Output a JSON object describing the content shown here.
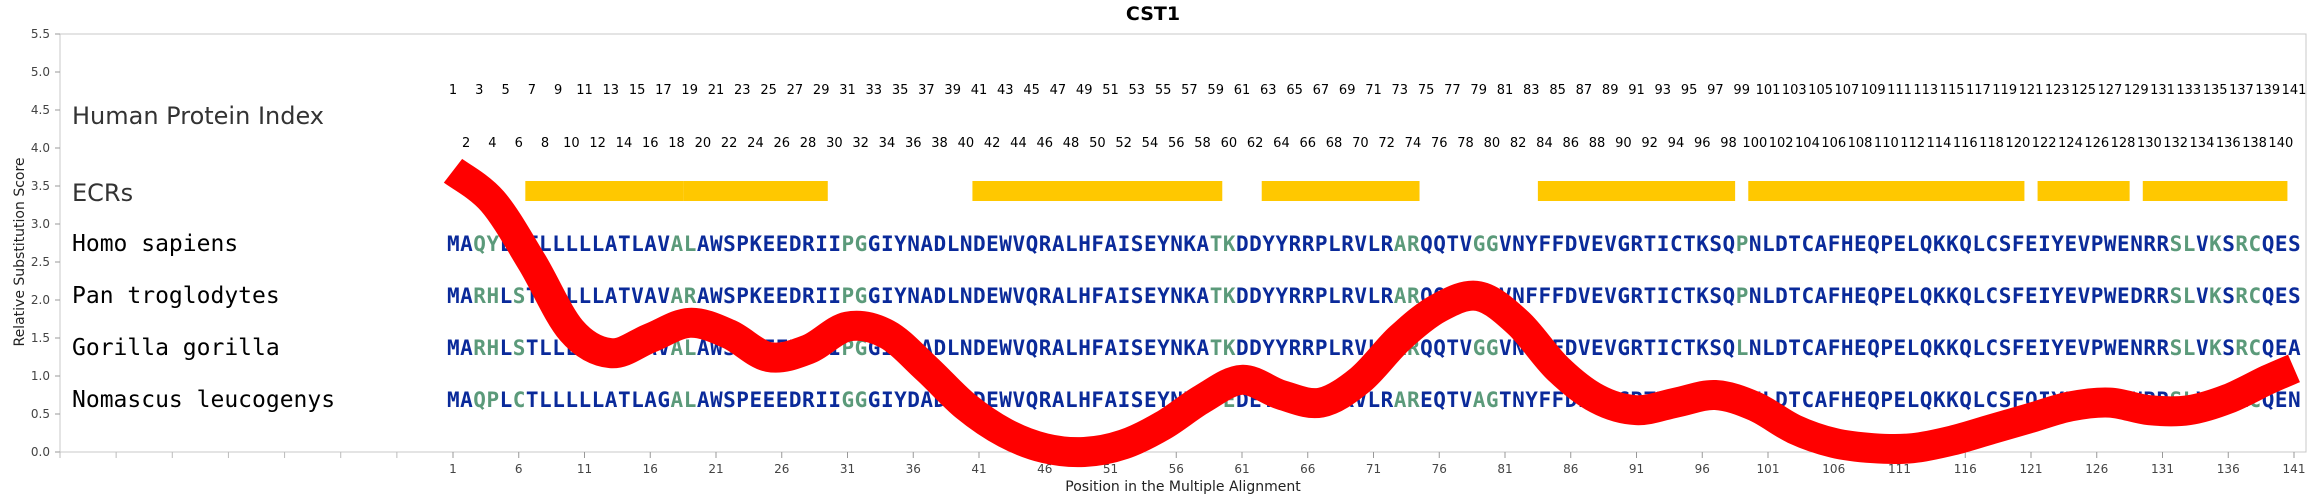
{
  "chart_data": {
    "type": "line",
    "title": "CST1",
    "xlabel": "Position in the Multiple Alignment",
    "ylabel": "Relative Substitution Score",
    "xlim": [
      1,
      141
    ],
    "ylim": [
      0,
      5.5
    ],
    "x_ticks": [
      "1",
      "6",
      "11",
      "16",
      "21",
      "26",
      "31",
      "36",
      "41",
      "46",
      "51",
      "56",
      "61",
      "66",
      "71",
      "76",
      "81",
      "86",
      "91",
      "96",
      "101",
      "106",
      "111",
      "116",
      "121",
      "126",
      "131",
      "136",
      "141"
    ],
    "y_ticks": [
      "0.0",
      "0.5",
      "1.0",
      "1.5",
      "2.0",
      "2.5",
      "3.0",
      "3.5",
      "4.0",
      "4.5",
      "5.0",
      "5.5"
    ],
    "track_labels": {
      "hpi": "Human Protein Index",
      "ecr": "ECRs"
    },
    "hpi_odd": [
      "1",
      "3",
      "5",
      "7",
      "9",
      "11",
      "13",
      "15",
      "17",
      "19",
      "21",
      "23",
      "25",
      "27",
      "29",
      "31",
      "33",
      "35",
      "37",
      "39",
      "41",
      "43",
      "45",
      "47",
      "49",
      "51",
      "53",
      "55",
      "57",
      "59",
      "61",
      "63",
      "65",
      "67",
      "69",
      "71",
      "73",
      "75",
      "77",
      "79",
      "81",
      "83",
      "85",
      "87",
      "89",
      "91",
      "93",
      "95",
      "97",
      "99",
      "101",
      "103",
      "105",
      "107",
      "109",
      "111",
      "113",
      "115",
      "117",
      "119",
      "121",
      "123",
      "125",
      "127",
      "129",
      "131",
      "133",
      "135",
      "137",
      "139",
      "141"
    ],
    "hpi_even": [
      "2",
      "4",
      "6",
      "8",
      "10",
      "12",
      "14",
      "16",
      "18",
      "20",
      "22",
      "24",
      "26",
      "28",
      "30",
      "32",
      "34",
      "36",
      "38",
      "40",
      "42",
      "44",
      "46",
      "48",
      "50",
      "52",
      "54",
      "56",
      "58",
      "60",
      "62",
      "64",
      "66",
      "68",
      "70",
      "72",
      "74",
      "76",
      "78",
      "80",
      "82",
      "84",
      "86",
      "88",
      "90",
      "92",
      "94",
      "96",
      "98",
      "100",
      "102",
      "104",
      "106",
      "108",
      "110",
      "112",
      "114",
      "116",
      "118",
      "120",
      "122",
      "124",
      "126",
      "128",
      "130",
      "132",
      "134",
      "136",
      "138",
      "140"
    ],
    "ecrs": [
      [
        7,
        18
      ],
      [
        19,
        29
      ],
      [
        41,
        59
      ],
      [
        63,
        74
      ],
      [
        84,
        98
      ],
      [
        100,
        120
      ],
      [
        122,
        128
      ],
      [
        130,
        140
      ]
    ],
    "ecr_color": "#ffc800",
    "residue_color": "#0a2a9a",
    "variant_color": "#5b9a7a",
    "line_color": "#ff0000",
    "species": [
      {
        "name": "Homo sapiens",
        "sequence": "MAQYLSTLLLLLATLAVALAWSPKEEDRIIPGGIYNADLNDEWVQRALHFAISEYNKATKDDYYRRPLRVLRARQQTVGGVNYFFDVEVGRTICTKSQPNLDTCAFHEQPELQKKQLCSFEIYEVPWENRRSLVKSRCQES",
        "variant_positions": [
          3,
          4,
          6,
          18,
          19,
          31,
          32,
          59,
          60,
          73,
          74,
          79,
          80,
          99,
          132,
          133,
          135,
          137,
          138
        ]
      },
      {
        "name": "Pan troglodytes",
        "sequence": "MARHLSTLLLLLATVAVARAWSPKEEDRIIPGGIYNADLNDEWVQRALHFAISEYNKATKDDYYRRPLRVLRARQQTVEGVNFFFDVEVGRTICTKSQPNLDTCAFHEQPELQKKQLCSFEIYEVPWEDRRSLVKSRCQES",
        "variant_positions": [
          3,
          4,
          6,
          18,
          19,
          31,
          32,
          59,
          60,
          73,
          74,
          79,
          80,
          99,
          132,
          133,
          135,
          137,
          138
        ]
      },
      {
        "name": "Gorilla gorilla",
        "sequence": "MARHLSTLLLLLATLAVALAWSPKEEDRIIPGGIYDADLNDEWVQRALHFAISEYNKATKDDYYRRPLRVLRARQQTVGGVNYFFDVEVGRTICTKSQLNLDTCAFHEQPELQKKQLCSFEIYEVPWENRRSLVKSRCQEA",
        "variant_positions": [
          3,
          4,
          6,
          18,
          19,
          31,
          32,
          59,
          60,
          73,
          74,
          79,
          80,
          99,
          132,
          133,
          135,
          137,
          138
        ]
      },
      {
        "name": "Nomascus leucogenys",
        "sequence": "MAQPLCTLLLLLATLAGALAWSPEEEDRIIGGGIYDADLDDEWVQRALHFAISEYNKATEDEYYRRPLRVLRAREQTVAGTNYFFDIEVGRTVCTKSQPNLDTCAFHEQPELQKKQLCSFQIYEVPWENRRSLVKSRCQEN",
        "variant_positions": [
          3,
          4,
          6,
          18,
          19,
          31,
          32,
          59,
          60,
          73,
          74,
          79,
          80,
          99,
          132,
          133,
          135,
          137,
          138
        ]
      }
    ],
    "series": [
      {
        "x": [
          1,
          4,
          7,
          10,
          13,
          16,
          19,
          22,
          25,
          28,
          31,
          34,
          37,
          40,
          43,
          46,
          49,
          52,
          55,
          58,
          61,
          64,
          67,
          70,
          73,
          76,
          79,
          82,
          85,
          88,
          91,
          94,
          97,
          100,
          103,
          106,
          109,
          112,
          115,
          118,
          121,
          124,
          127,
          130,
          133,
          136,
          139,
          141
        ],
        "y": [
          3.7,
          3.3,
          2.5,
          1.6,
          1.3,
          1.5,
          1.7,
          1.55,
          1.25,
          1.35,
          1.65,
          1.55,
          1.1,
          0.6,
          0.25,
          0.05,
          0.0,
          0.1,
          0.35,
          0.7,
          0.95,
          0.75,
          0.65,
          0.95,
          1.5,
          1.9,
          2.05,
          1.7,
          1.1,
          0.7,
          0.55,
          0.65,
          0.75,
          0.6,
          0.3,
          0.12,
          0.05,
          0.05,
          0.15,
          0.3,
          0.45,
          0.6,
          0.65,
          0.55,
          0.55,
          0.7,
          0.95,
          1.1
        ]
      }
    ]
  }
}
